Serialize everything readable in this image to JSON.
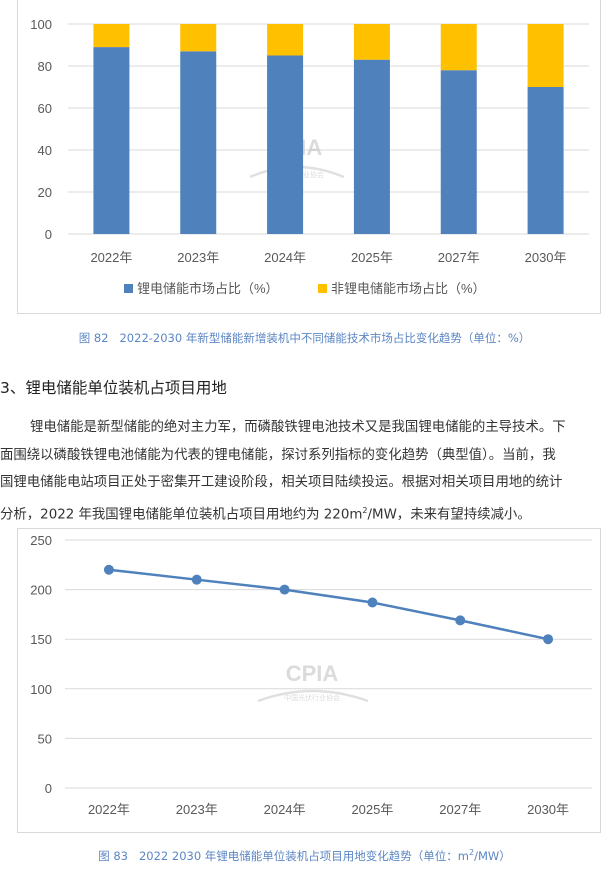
{
  "figure1": {
    "caption": "图 82   2022-2030 年新型储能新增装机中不同储能技术市场占比变化趋势（单位：%）",
    "watermark": {
      "logo_text": "CPIA",
      "org_text": "中国光伏行业协会"
    },
    "chart_data": {
      "type": "bar",
      "stacked": true,
      "categories": [
        "2022年",
        "2023年",
        "2024年",
        "2025年",
        "2027年",
        "2030年"
      ],
      "series": [
        {
          "name": "锂电储能市场占比（%）",
          "color": "#4f81bd",
          "values": [
            89,
            87,
            85,
            83,
            78,
            70
          ]
        },
        {
          "name": "非锂电储能市场占比（%）",
          "color": "#ffc000",
          "values": [
            11,
            13,
            15,
            17,
            22,
            30
          ]
        }
      ],
      "ylim": [
        0,
        100
      ],
      "yticks": [
        "0",
        "20",
        "40",
        "60",
        "80",
        "100"
      ],
      "grid": true,
      "legend": "bottom"
    }
  },
  "section": {
    "heading": "3、锂电储能单位装机占项目用地",
    "paragraph_lines": [
      "锂电储能是新型储能的绝对主力军，而磷酸铁锂电池技术又是我国锂电储能的主导技术。下",
      "面围绕以磷酸铁锂电池储能为代表的锂电储能，探讨系列指标的变化趋势（典型值）。当前，我",
      "国锂电储能电站项目正处于密集开工建设阶段，相关项目陆续投运。根据对相关项目用地的统计"
    ],
    "last_line_before": "分析，2022 年我国锂电储能单位装机占项目用地约为 220m",
    "last_line_sup": "2",
    "last_line_after": "/MW，未来有望持续减小。"
  },
  "figure2": {
    "caption_before": "图 83   2022 2030 年锂电储能单位装机占项目用地变化趋势（单位：m",
    "caption_sup": "2",
    "caption_after": "/MW）",
    "watermark": {
      "logo_text": "CPIA",
      "org_text": "中国光伏行业协会"
    },
    "chart_data": {
      "type": "line",
      "categories": [
        "2022年",
        "2023年",
        "2024年",
        "2025年",
        "2027年",
        "2030年"
      ],
      "series": [
        {
          "color": "#4f81bd",
          "values": [
            220,
            210,
            200,
            187,
            169,
            150
          ]
        }
      ],
      "ylim": [
        0,
        250
      ],
      "yticks": [
        "0",
        "50",
        "100",
        "150",
        "200",
        "250"
      ],
      "grid": true
    }
  }
}
